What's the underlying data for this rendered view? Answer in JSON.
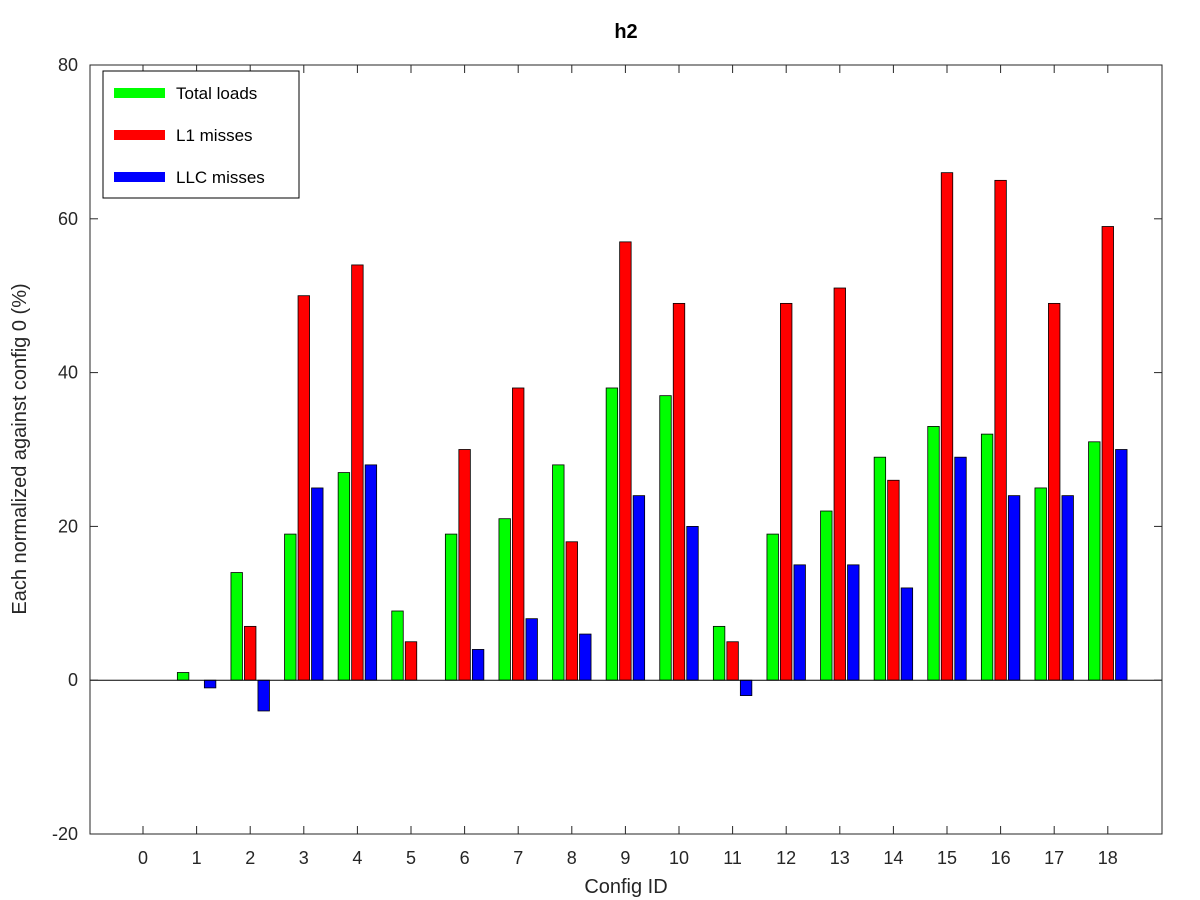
{
  "chart_data": {
    "type": "bar",
    "title": "h2",
    "xlabel": "Config ID",
    "ylabel": "Each normalized against config 0 (%)",
    "categories": [
      "0",
      "1",
      "2",
      "3",
      "4",
      "5",
      "6",
      "7",
      "8",
      "9",
      "10",
      "11",
      "12",
      "13",
      "14",
      "15",
      "16",
      "17",
      "18"
    ],
    "ylim": [
      -20,
      80
    ],
    "yticks": [
      -20,
      0,
      20,
      40,
      60,
      80
    ],
    "grid": false,
    "legend_position": "top-left",
    "series": [
      {
        "name": "Total loads",
        "color": "#00ff00",
        "values": [
          0,
          1,
          14,
          19,
          27,
          9,
          19,
          21,
          28,
          38,
          37,
          7,
          19,
          22,
          29,
          33,
          32,
          25,
          31
        ]
      },
      {
        "name": "L1 misses",
        "color": "#ff0000",
        "values": [
          0,
          0,
          7,
          50,
          54,
          5,
          30,
          38,
          18,
          57,
          49,
          5,
          49,
          51,
          26,
          66,
          65,
          49,
          59
        ]
      },
      {
        "name": "LLC misses",
        "color": "#0000ff",
        "values": [
          0,
          -1,
          -4,
          25,
          28,
          0,
          4,
          8,
          6,
          24,
          20,
          -2,
          15,
          15,
          12,
          29,
          24,
          24,
          30
        ]
      }
    ]
  }
}
